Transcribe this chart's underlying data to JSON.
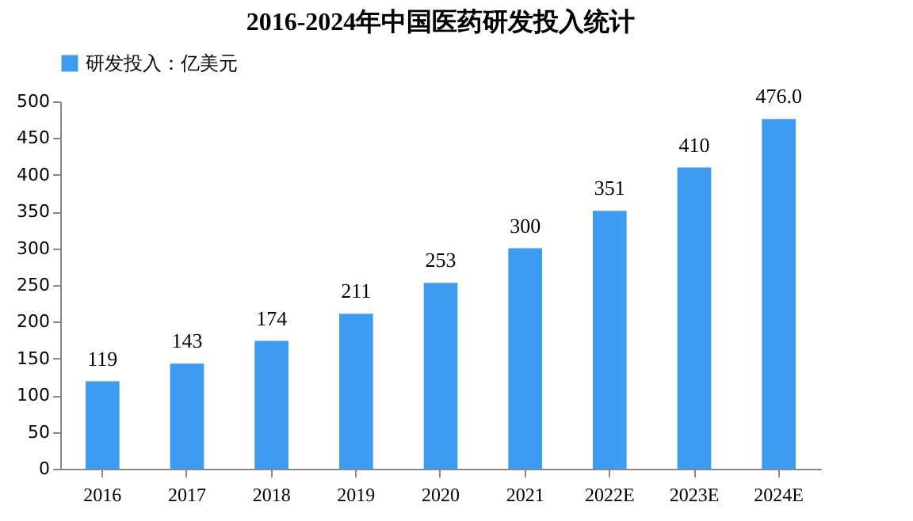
{
  "chart_data": {
    "type": "bar",
    "title": "2016-2024年中国医药研发投入统计",
    "categories": [
      "2016",
      "2017",
      "2018",
      "2019",
      "2020",
      "2021",
      "2022E",
      "2023E",
      "2024E"
    ],
    "series": [
      {
        "name": "研发投入：亿美元",
        "color": "#3d9cf0",
        "values": [
          119,
          143,
          174,
          211,
          253,
          300,
          351,
          410,
          476
        ],
        "value_labels": [
          "119",
          "143",
          "174",
          "211",
          "253",
          "300",
          "351",
          "410",
          "476.0"
        ]
      }
    ],
    "ylim": [
      0,
      500
    ],
    "yticks": [
      0,
      50,
      100,
      150,
      200,
      250,
      300,
      350,
      400,
      450,
      500
    ],
    "grid": false,
    "legend": "top"
  }
}
